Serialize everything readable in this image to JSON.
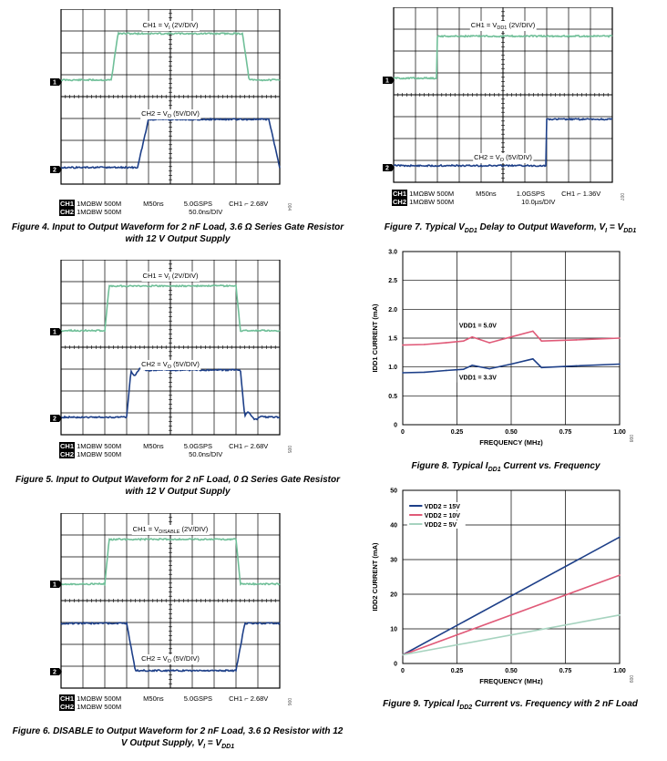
{
  "colors": {
    "ch1": "#6fbf98",
    "ch2": "#1d3f88",
    "pink": "#e05a78",
    "navy": "#1d3f88",
    "lightgreen": "#a6d3bf",
    "grid": "#000000"
  },
  "scopes": [
    {
      "id": "fig4",
      "ch1_label": "CH1 = V",
      "ch1_sub": "I",
      "ch1_suffix": " (2V/DIV)",
      "ch2_label": "CH2 = V",
      "ch2_sub": "O",
      "ch2_suffix": " (5V/DIV)",
      "marker1": "1",
      "marker2": "2",
      "status_row1": {
        "tag": "CH1",
        "text": "1MΩBW  500M",
        "timebase": "M50ns",
        "rate": "5.0GSPS",
        "trigger": "CH1 ⌐  2.68V"
      },
      "status_row2": {
        "tag": "CH2",
        "text": "1MΩBW  500M",
        "scale": "50.0ns/DIV"
      },
      "tiny_id": "004",
      "caption_line1": "Figure 4. Input to Output Waveform for 2 nF Load, 3.6 Ω Series Gate Resistor",
      "caption_line2": "with 12 V Output Supply"
    },
    {
      "id": "fig5",
      "ch1_label": "CH1 = V",
      "ch1_sub": "I",
      "ch1_suffix": " (2V/DIV)",
      "ch2_label": "CH2 = V",
      "ch2_sub": "O",
      "ch2_suffix": " (5V/DIV)",
      "marker1": "1",
      "marker2": "2",
      "status_row1": {
        "tag": "CH1",
        "text": "1MΩBW  500M",
        "timebase": "M50ns",
        "rate": "5.0GSPS",
        "trigger": "CH1 ⌐  2.68V"
      },
      "status_row2": {
        "tag": "CH2",
        "text": "1MΩBW  500M",
        "scale": "50.0ns/DIV"
      },
      "tiny_id": "005",
      "caption_line1": "Figure 5. Input to Output Waveform for 2 nF Load, 0 Ω Series Gate Resistor",
      "caption_line2": "with 12 V Output Supply"
    },
    {
      "id": "fig6",
      "ch1_label": "CH1 = V",
      "ch1_sub": "DISABLE",
      "ch1_suffix": " (2V/DIV)",
      "ch2_label": "CH2 = V",
      "ch2_sub": "O",
      "ch2_suffix": " (5V/DIV)",
      "marker1": "1",
      "marker2": "2",
      "status_row1": {
        "tag": "CH1",
        "text": "1MΩBW  500M",
        "timebase": "M50ns",
        "rate": "5.0GSPS",
        "trigger": "CH1 ⌐  2.68V"
      },
      "status_row2": {
        "tag": "CH2",
        "text": "1MΩBW  500M",
        "scale": ""
      },
      "tiny_id": "006",
      "caption_line1": "Figure 6. DISABLE to Output Waveform for 2 nF Load, 3.6 Ω Resistor with 12",
      "caption_line2": "V Output Supply, VI = VDD1"
    },
    {
      "id": "fig7",
      "ch1_label": "CH1 = V",
      "ch1_sub": "DD1",
      "ch1_suffix": " (2V/DIV)",
      "ch2_label": "CH2 = V",
      "ch2_sub": "O",
      "ch2_suffix": " (5V/DIV)",
      "marker1": "1",
      "marker2": "2",
      "status_row1": {
        "tag": "CH1",
        "text": "1MΩBW  500M",
        "timebase": "M50ns",
        "rate": "1.0GSPS",
        "trigger": "CH1 ⌐  1.36V"
      },
      "status_row2": {
        "tag": "CH2",
        "text": "1MΩBW  500M",
        "scale": "10.0µs/DIV"
      },
      "tiny_id": "007",
      "caption_line1": "Figure 7. Typical VDD1 Delay to Output Waveform, VI = VDD1",
      "caption_line2": ""
    }
  ],
  "chart_data": [
    {
      "id": "fig8",
      "type": "line",
      "ylabel": "IDD1 CURRENT (mA)",
      "xlabel": "FREQUENCY (MHz)",
      "xlim": [
        0,
        1.0
      ],
      "ylim": [
        0,
        3.0
      ],
      "x_ticks": [
        "0",
        "0.25",
        "0.50",
        "0.75",
        "1.00"
      ],
      "y_ticks": [
        "0",
        "0.5",
        "1.0",
        "1.5",
        "2.0",
        "2.5",
        "3.0"
      ],
      "series": [
        {
          "name": "VDD1 = 5.0V",
          "color": "#e05a78",
          "x": [
            0,
            0.1,
            0.2,
            0.28,
            0.32,
            0.4,
            0.5,
            0.6,
            0.64,
            0.8,
            1.0
          ],
          "y": [
            1.38,
            1.39,
            1.42,
            1.45,
            1.52,
            1.42,
            1.52,
            1.62,
            1.45,
            1.47,
            1.5
          ]
        },
        {
          "name": "VDD1 = 3.3V",
          "color": "#1d3f88",
          "x": [
            0,
            0.1,
            0.2,
            0.28,
            0.32,
            0.4,
            0.5,
            0.6,
            0.64,
            0.8,
            1.0
          ],
          "y": [
            0.9,
            0.91,
            0.94,
            0.96,
            1.03,
            0.97,
            1.05,
            1.14,
            0.99,
            1.02,
            1.05
          ]
        }
      ],
      "tiny_id": "008",
      "caption": "Figure 8. Typical IDD1 Current vs. Frequency"
    },
    {
      "id": "fig9",
      "type": "line",
      "ylabel": "IDD2 CURRENT (mA)",
      "xlabel": "FREQUENCY (MHz)",
      "xlim": [
        0,
        1.0
      ],
      "ylim": [
        0,
        50
      ],
      "x_ticks": [
        "0",
        "0.25",
        "0.50",
        "0.75",
        "1.00"
      ],
      "y_ticks": [
        "0",
        "10",
        "20",
        "30",
        "40",
        "50"
      ],
      "legend": "top-left",
      "series": [
        {
          "name": "VDD2 = 15V",
          "color": "#1d3f88",
          "x": [
            0,
            1.0
          ],
          "y": [
            2.5,
            36.5
          ]
        },
        {
          "name": "VDD2 = 10V",
          "color": "#e05a78",
          "x": [
            0,
            1.0
          ],
          "y": [
            2.5,
            25.5
          ]
        },
        {
          "name": "VDD2 = 5V",
          "color": "#a6d3bf",
          "x": [
            0,
            1.0
          ],
          "y": [
            2.5,
            14
          ]
        }
      ],
      "tiny_id": "009",
      "caption": "Figure 9. Typical IDD2 Current vs. Frequency with 2 nF Load"
    }
  ]
}
